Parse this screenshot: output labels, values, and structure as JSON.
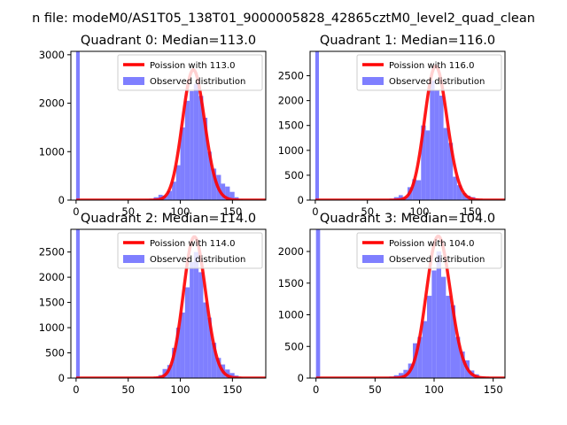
{
  "figure": {
    "suptitle": "n file: modeM0/AS1T05_138T01_9000005828_42865cztM0_level2_quad_clean"
  },
  "chart_data": [
    {
      "type": "bar",
      "title": "Quadrant 0: Median=113.0",
      "xlim": [
        -5,
        182
      ],
      "ylim": [
        0,
        3070
      ],
      "xticks": [
        0,
        50,
        100,
        150
      ],
      "yticks": [
        0,
        1000,
        2000,
        3000
      ],
      "median": 113.0,
      "legend": [
        "Poission with 113.0",
        "Observed distribution"
      ],
      "legend_loc": "top-right",
      "bins": [
        [
          0,
          3.5,
          3070
        ],
        [
          61.5,
          66,
          2
        ],
        [
          66,
          70,
          15
        ],
        [
          70,
          74.5,
          30
        ],
        [
          74.5,
          79,
          60
        ],
        [
          79,
          83,
          110
        ],
        [
          83,
          87.5,
          95
        ],
        [
          87.5,
          92,
          190
        ],
        [
          92,
          96,
          380
        ],
        [
          96,
          100,
          720
        ],
        [
          100,
          104.5,
          1500
        ],
        [
          104.5,
          109,
          2050
        ],
        [
          109,
          113,
          2250
        ],
        [
          113,
          117.5,
          2400
        ],
        [
          117.5,
          122,
          2150
        ],
        [
          122,
          126,
          1700
        ],
        [
          126,
          130,
          1000
        ],
        [
          130,
          134.5,
          650
        ],
        [
          134.5,
          139,
          520
        ],
        [
          139,
          143,
          340
        ],
        [
          143,
          147.5,
          280
        ],
        [
          147.5,
          152,
          170
        ],
        [
          152,
          156,
          60
        ],
        [
          156,
          160,
          20
        ],
        [
          160,
          165,
          5
        ]
      ]
    },
    {
      "type": "bar",
      "title": "Quadrant 1: Median=116.0",
      "xlim": [
        -5,
        182
      ],
      "ylim": [
        0,
        2990
      ],
      "xticks": [
        0,
        50,
        100,
        150
      ],
      "yticks": [
        0,
        500,
        1000,
        1500,
        2000,
        2500
      ],
      "median": 116.0,
      "legend": [
        "Poission with 116.0",
        "Observed distribution"
      ],
      "legend_loc": "top-right",
      "bins": [
        [
          0,
          3.5,
          2990
        ],
        [
          62,
          66.5,
          2
        ],
        [
          66.5,
          71,
          8
        ],
        [
          71,
          75.5,
          30
        ],
        [
          75.5,
          80,
          60
        ],
        [
          80,
          84,
          100
        ],
        [
          84,
          88.5,
          60
        ],
        [
          88.5,
          93,
          260
        ],
        [
          93,
          97,
          420
        ],
        [
          97,
          101.5,
          400
        ],
        [
          101.5,
          106,
          1500
        ],
        [
          106,
          110,
          1400
        ],
        [
          110,
          114.5,
          2400
        ],
        [
          114.5,
          119,
          2200
        ],
        [
          119,
          123,
          2100
        ],
        [
          123,
          127.5,
          1450
        ],
        [
          127.5,
          132,
          1150
        ],
        [
          132,
          136,
          470
        ],
        [
          136,
          140.5,
          300
        ],
        [
          140.5,
          145,
          140
        ],
        [
          145,
          149,
          90
        ],
        [
          149,
          153.5,
          60
        ],
        [
          153.5,
          158,
          30
        ],
        [
          158,
          162,
          10
        ],
        [
          162,
          167,
          4
        ]
      ]
    },
    {
      "type": "bar",
      "title": "Quadrant 2: Median=114.0",
      "xlim": [
        -5,
        182
      ],
      "ylim": [
        0,
        2950
      ],
      "xticks": [
        0,
        50,
        100,
        150
      ],
      "yticks": [
        0,
        500,
        1000,
        1500,
        2000,
        2500
      ],
      "median": 114.0,
      "legend": [
        "Poission with 114.0",
        "Observed distribution"
      ],
      "legend_loc": "top-right",
      "bins": [
        [
          0,
          3.5,
          2950
        ],
        [
          66,
          70,
          2
        ],
        [
          70,
          74.5,
          10
        ],
        [
          74.5,
          79,
          20
        ],
        [
          79,
          83,
          60
        ],
        [
          83,
          87.5,
          180
        ],
        [
          87.5,
          92,
          260
        ],
        [
          92,
          96,
          600
        ],
        [
          96,
          100,
          1000
        ],
        [
          100,
          104.5,
          1300
        ],
        [
          104.5,
          109,
          1800
        ],
        [
          109,
          113,
          2300
        ],
        [
          113,
          117.5,
          2500
        ],
        [
          117.5,
          122,
          2100
        ],
        [
          122,
          126,
          1500
        ],
        [
          126,
          130,
          1200
        ],
        [
          130,
          134.5,
          700
        ],
        [
          134.5,
          139,
          400
        ],
        [
          139,
          143,
          270
        ],
        [
          143,
          147.5,
          170
        ],
        [
          147.5,
          152,
          100
        ],
        [
          152,
          156,
          50
        ],
        [
          156,
          160,
          20
        ],
        [
          160,
          165,
          5
        ]
      ]
    },
    {
      "type": "bar",
      "title": "Quadrant 3: Median=104.0",
      "xlim": [
        -5,
        160
      ],
      "ylim": [
        0,
        2350
      ],
      "xticks": [
        0,
        50,
        100,
        150
      ],
      "yticks": [
        0,
        500,
        1000,
        1500,
        2000
      ],
      "median": 104.0,
      "legend": [
        "Poission with 104.0",
        "Observed distribution"
      ],
      "legend_loc": "top-right",
      "bins": [
        [
          0,
          3.5,
          2350
        ],
        [
          50,
          54,
          2
        ],
        [
          54,
          58,
          5
        ],
        [
          58,
          62,
          10
        ],
        [
          62,
          66,
          25
        ],
        [
          66,
          70,
          45
        ],
        [
          70,
          74,
          80
        ],
        [
          74,
          78,
          130
        ],
        [
          78,
          82,
          230
        ],
        [
          82,
          86,
          550
        ],
        [
          86,
          90,
          650
        ],
        [
          90,
          94,
          900
        ],
        [
          94,
          98,
          1300
        ],
        [
          98,
          102,
          1700
        ],
        [
          102,
          106,
          2000
        ],
        [
          106,
          110,
          1600
        ],
        [
          110,
          114,
          1300
        ],
        [
          114,
          118,
          1150
        ],
        [
          118,
          122,
          650
        ],
        [
          122,
          126,
          420
        ],
        [
          126,
          130,
          280
        ],
        [
          130,
          134,
          120
        ],
        [
          134,
          138,
          60
        ],
        [
          138,
          142,
          25
        ],
        [
          142,
          146,
          10
        ]
      ]
    }
  ],
  "colors": {
    "hist": "#7f7fff",
    "curve": "#ff0000",
    "axis": "#000000",
    "legend_border": "#cccccc"
  }
}
